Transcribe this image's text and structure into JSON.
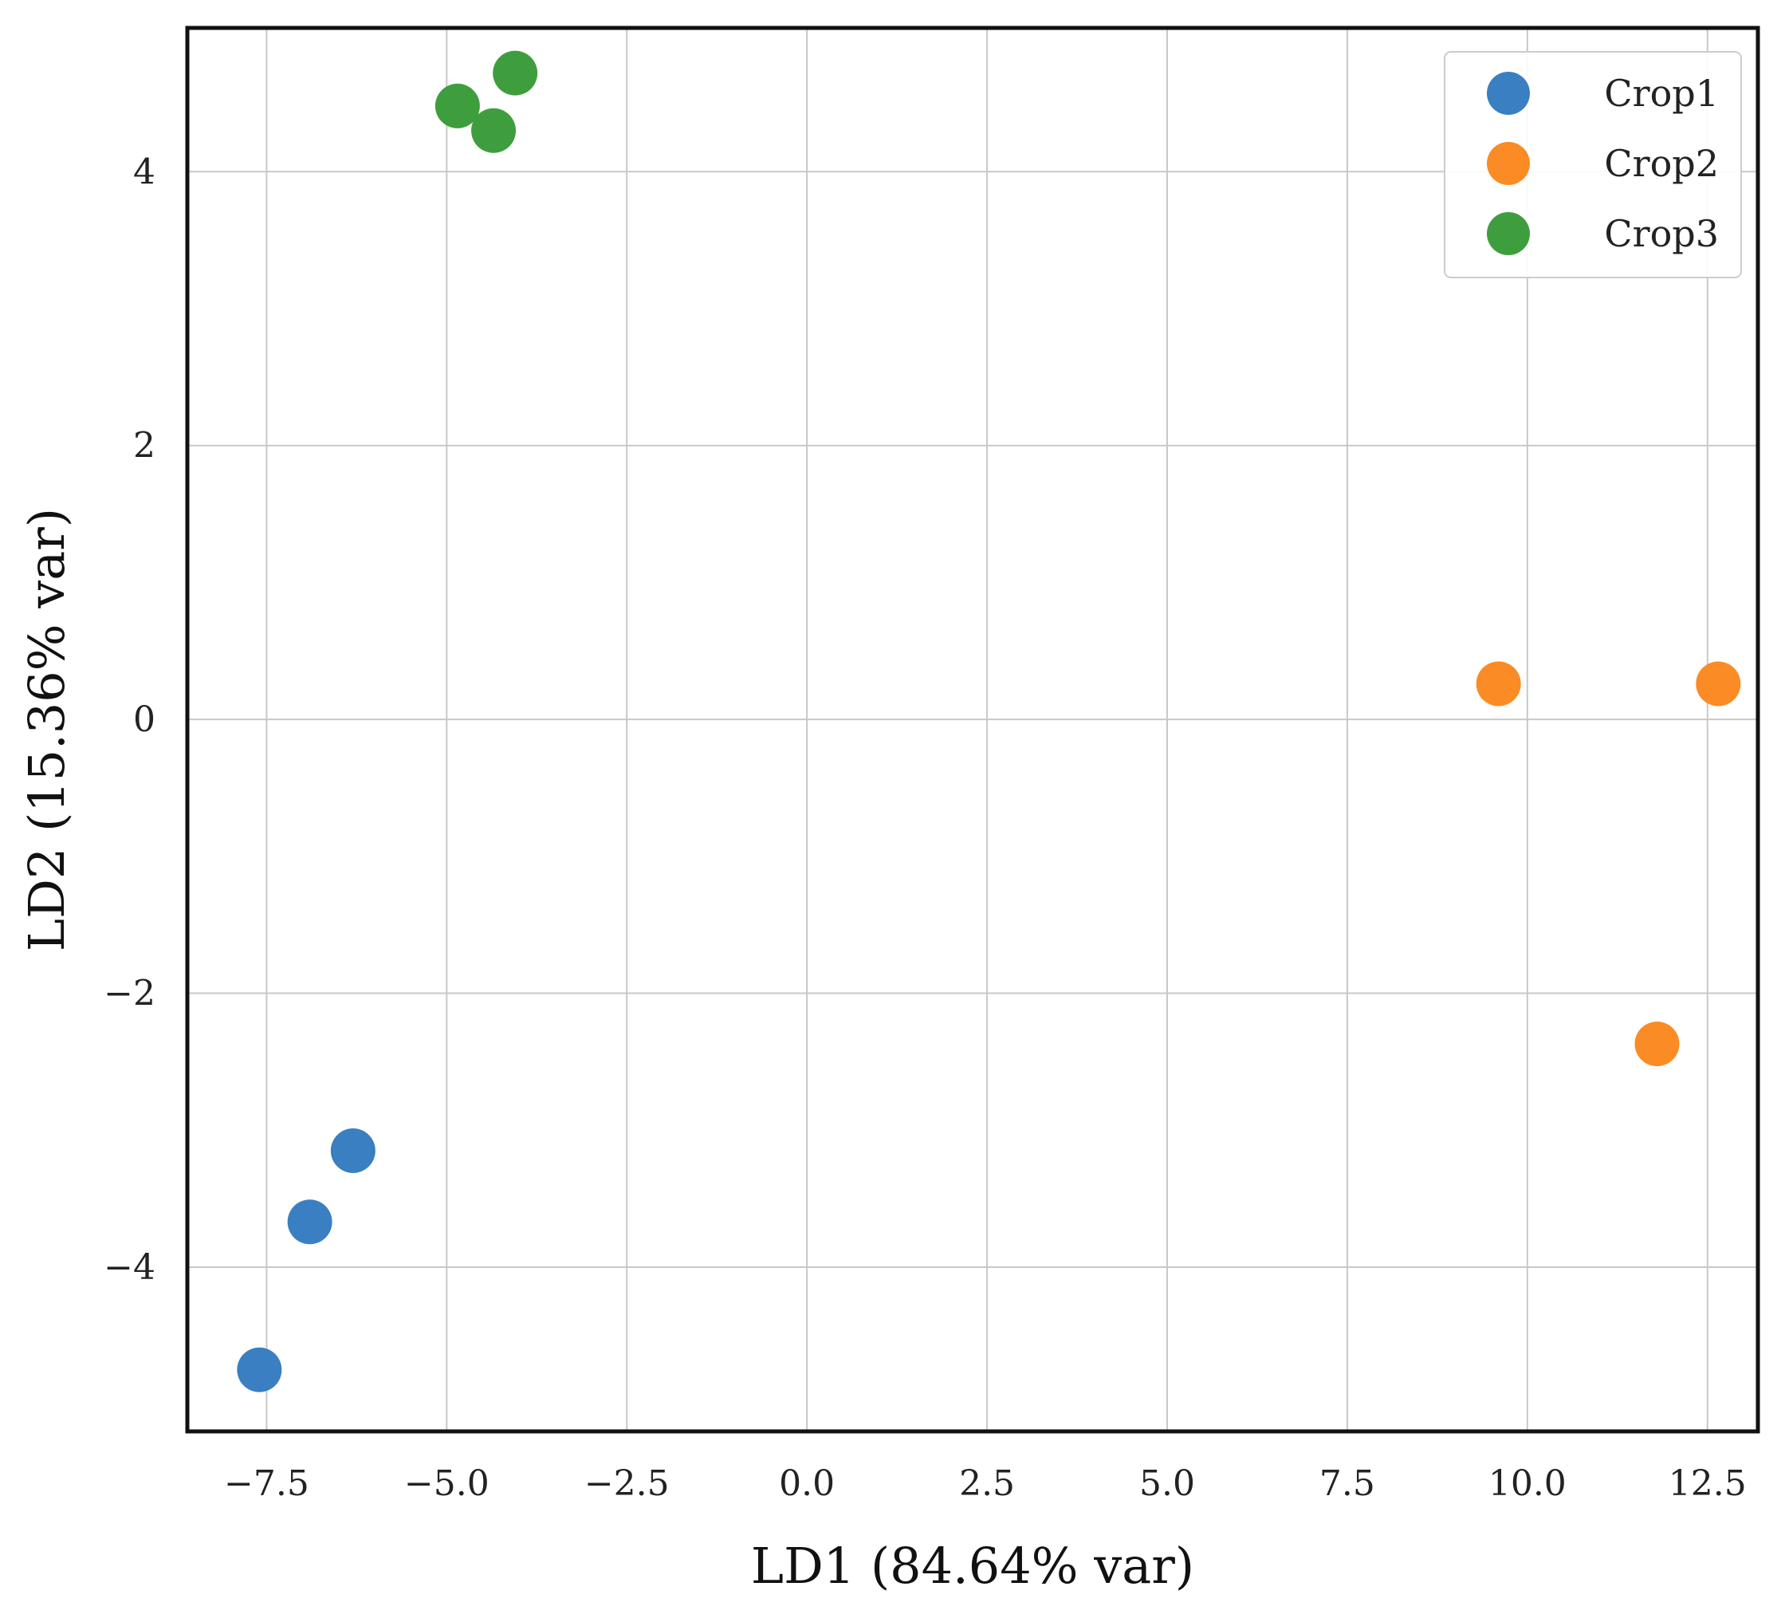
{
  "chart_data": {
    "type": "scatter",
    "title": "",
    "xlabel": "LD1 (84.64% var)",
    "ylabel": "LD2 (15.36% var)",
    "xlim": [
      -8.6,
      13.2
    ],
    "ylim": [
      -5.2,
      5.05
    ],
    "xticks": [
      -7.5,
      -5.0,
      -2.5,
      0.0,
      2.5,
      5.0,
      7.5,
      10.0,
      12.5
    ],
    "xtick_labels": [
      "−7.5",
      "−5.0",
      "−2.5",
      "0.0",
      "2.5",
      "5.0",
      "7.5",
      "10.0",
      "12.5"
    ],
    "yticks": [
      -4,
      -2,
      0,
      2,
      4
    ],
    "ytick_labels": [
      "−4",
      "−2",
      "0",
      "2",
      "4"
    ],
    "grid": true,
    "legend_position": "top-right",
    "series": [
      {
        "name": "Crop1",
        "color": "#3a7fc1",
        "points": [
          {
            "x": -7.6,
            "y": -4.75
          },
          {
            "x": -6.9,
            "y": -3.67
          },
          {
            "x": -6.3,
            "y": -3.15
          }
        ]
      },
      {
        "name": "Crop2",
        "color": "#fb8b24",
        "points": [
          {
            "x": 9.6,
            "y": 0.26
          },
          {
            "x": 12.65,
            "y": 0.26
          },
          {
            "x": 11.8,
            "y": -2.37
          }
        ]
      },
      {
        "name": "Crop3",
        "color": "#3e9e3e",
        "points": [
          {
            "x": -4.85,
            "y": 4.48
          },
          {
            "x": -4.35,
            "y": 4.3
          },
          {
            "x": -4.05,
            "y": 4.72
          }
        ]
      }
    ]
  }
}
